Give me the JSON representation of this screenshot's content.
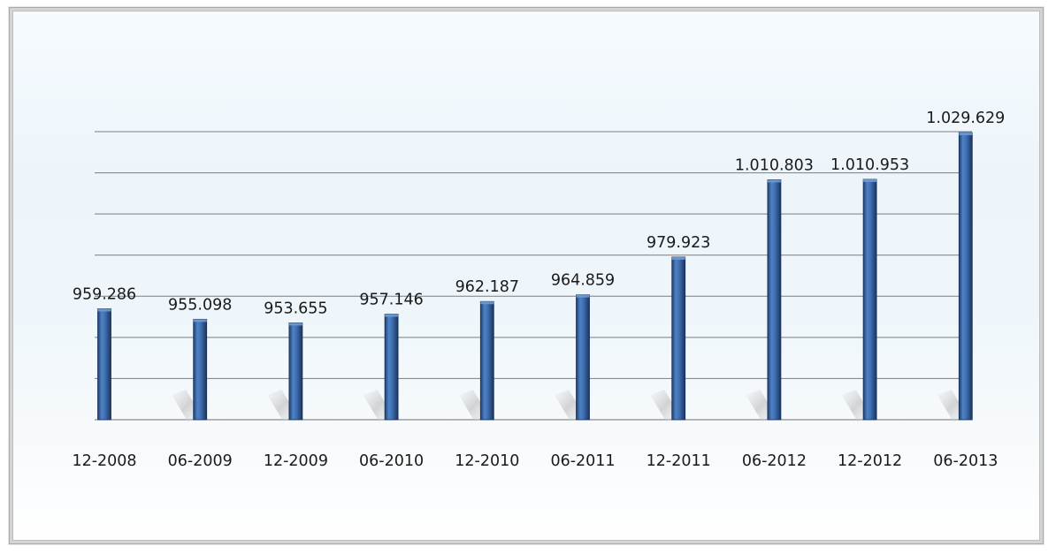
{
  "chart_data": {
    "type": "bar",
    "title": "",
    "xlabel": "",
    "ylabel": "",
    "categories": [
      "12-2008",
      "06-2009",
      "12-2009",
      "06-2010",
      "12-2010",
      "06-2011",
      "12-2011",
      "06-2012",
      "12-2012",
      "06-2013"
    ],
    "values": [
      959286,
      955098,
      953655,
      957146,
      962187,
      964859,
      979923,
      1010803,
      1010953,
      1029629
    ],
    "data_labels": [
      "959.286",
      "955.098",
      "953.655",
      "957.146",
      "962.187",
      "964.859",
      "979.923",
      "1.010.803",
      "1.010.953",
      "1.029.629"
    ],
    "ylim": [
      915000,
      1030000
    ],
    "grid": true,
    "y_axis_labels_shown": false,
    "legend": "none",
    "colors": {
      "bar": "#3f6fb0",
      "bar_dark": "#1f3f70",
      "grid": "#7d7d7d",
      "shadow": "#c9c9c9"
    }
  }
}
